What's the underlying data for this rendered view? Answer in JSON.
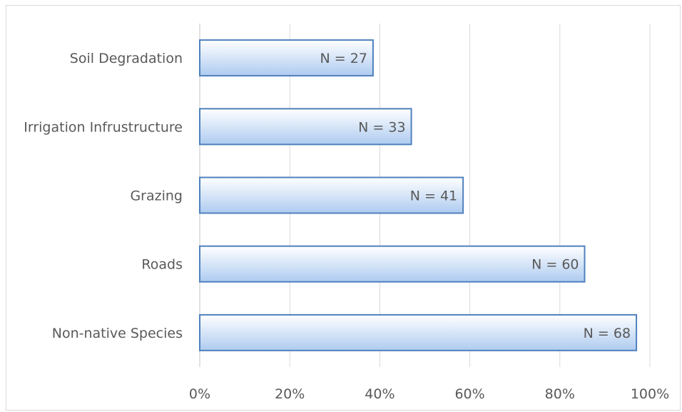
{
  "chart_data": {
    "type": "bar",
    "orientation": "horizontal",
    "categories": [
      "Soil Degradation",
      "Irrigation Infrustructure",
      "Grazing",
      "Roads",
      "Non-native Species"
    ],
    "values": [
      38.5,
      47,
      58.5,
      85.5,
      97
    ],
    "data_labels": [
      "N = 27",
      "N = 33",
      "N = 41",
      "N = 60",
      "N = 68"
    ],
    "x_ticks": [
      "0%",
      "20%",
      "40%",
      "60%",
      "80%",
      "100%"
    ],
    "xlim": [
      0,
      100
    ],
    "grid": "vertical",
    "legend": "none",
    "colors": {
      "bar_fill_top": "#ffffff",
      "bar_fill_bottom": "#aecbf0",
      "bar_border": "#4f81bd",
      "gridline": "#d9d9d9",
      "text": "#595959"
    }
  }
}
